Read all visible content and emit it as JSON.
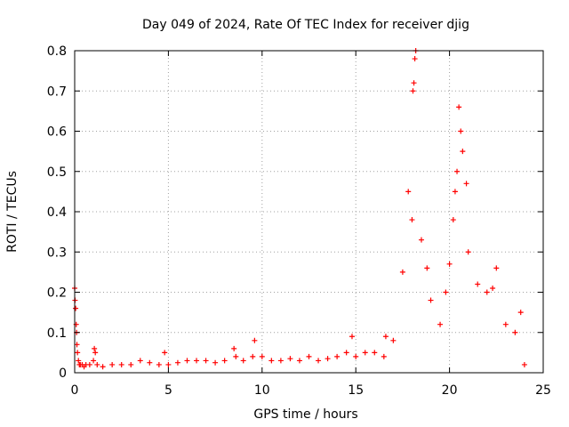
{
  "chart_data": {
    "type": "scatter",
    "title": "Day 049 of 2024, Rate Of TEC Index for receiver djig",
    "xlabel": "GPS time / hours",
    "ylabel": "ROTI / TECUs",
    "xlim": [
      0,
      25
    ],
    "ylim": [
      0,
      0.8
    ],
    "xticks": [
      "0",
      "5",
      "10",
      "15",
      "20",
      "25"
    ],
    "yticks": [
      "0",
      "0.1",
      "0.2",
      "0.3",
      "0.4",
      "0.5",
      "0.6",
      "0.7",
      "0.8"
    ],
    "grid": true,
    "marker": "+",
    "color": "#ff0000",
    "series": [
      {
        "name": "ROTI",
        "x": [
          0.0,
          0.02,
          0.05,
          0.08,
          0.1,
          0.12,
          0.15,
          0.2,
          0.25,
          0.3,
          0.4,
          0.5,
          0.6,
          0.8,
          1.0,
          1.05,
          1.1,
          1.2,
          1.5,
          2.0,
          2.5,
          3.0,
          3.5,
          4.0,
          4.5,
          4.8,
          5.0,
          5.5,
          6.0,
          6.5,
          7.0,
          7.5,
          8.0,
          8.5,
          8.6,
          9.0,
          9.5,
          9.6,
          10.0,
          10.5,
          11.0,
          11.5,
          12.0,
          12.5,
          13.0,
          13.5,
          14.0,
          14.5,
          14.8,
          15.0,
          15.5,
          16.0,
          16.5,
          16.6,
          17.0,
          17.5,
          17.8,
          18.0,
          18.05,
          18.1,
          18.15,
          18.2,
          18.5,
          18.8,
          19.0,
          19.5,
          19.8,
          20.0,
          20.2,
          20.3,
          20.4,
          20.5,
          20.6,
          20.7,
          20.9,
          21.0,
          21.5,
          22.0,
          22.3,
          22.5,
          23.0,
          23.5,
          23.8,
          24.0
        ],
        "y": [
          0.21,
          0.18,
          0.16,
          0.12,
          0.1,
          0.07,
          0.05,
          0.03,
          0.02,
          0.02,
          0.02,
          0.015,
          0.02,
          0.02,
          0.03,
          0.06,
          0.05,
          0.02,
          0.015,
          0.02,
          0.02,
          0.02,
          0.03,
          0.025,
          0.02,
          0.05,
          0.02,
          0.025,
          0.03,
          0.03,
          0.03,
          0.025,
          0.03,
          0.06,
          0.04,
          0.03,
          0.04,
          0.08,
          0.04,
          0.03,
          0.03,
          0.035,
          0.03,
          0.04,
          0.03,
          0.035,
          0.04,
          0.05,
          0.09,
          0.04,
          0.05,
          0.05,
          0.04,
          0.09,
          0.08,
          0.25,
          0.45,
          0.38,
          0.7,
          0.72,
          0.78,
          0.8,
          0.33,
          0.26,
          0.18,
          0.12,
          0.2,
          0.27,
          0.38,
          0.45,
          0.5,
          0.66,
          0.6,
          0.55,
          0.47,
          0.3,
          0.22,
          0.2,
          0.21,
          0.26,
          0.12,
          0.1,
          0.15,
          0.02
        ]
      }
    ]
  }
}
